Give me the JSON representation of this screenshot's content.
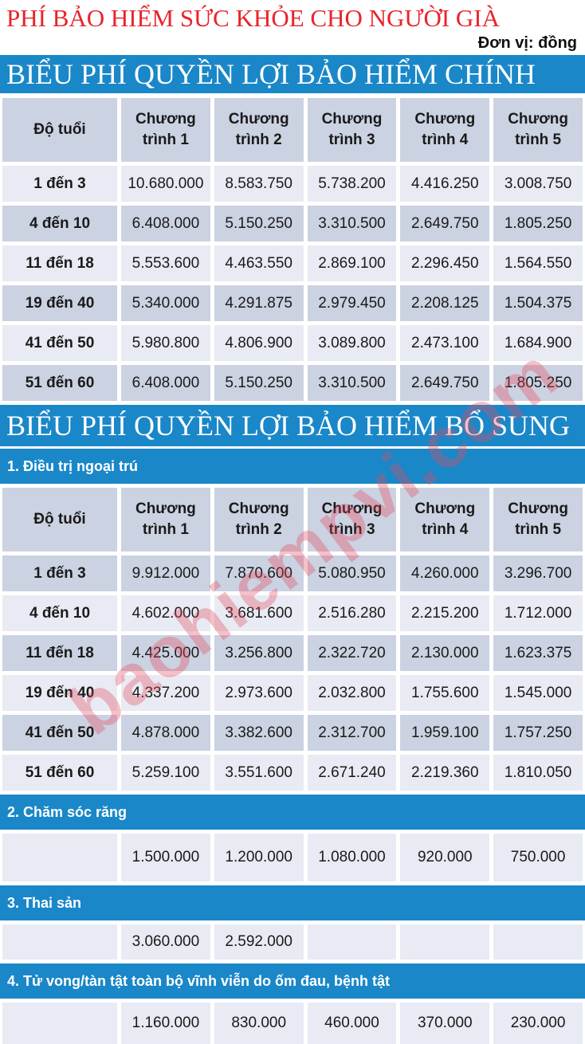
{
  "page": {
    "title": "PHÍ BẢO HIỂM SỨC KHỎE CHO NGƯỜI GIÀ",
    "unit_label": "Đơn vị: đồng",
    "watermark": "baohiempvi.com",
    "colors": {
      "banner_blue": "#1a87c8",
      "title_red": "#e8242b",
      "row_light": "#e8ebf3",
      "row_dark": "#cbd2e1",
      "watermark_pink": "rgba(228,75,95,0.35)"
    }
  },
  "main_table": {
    "banner": "BIỂU PHÍ QUYỀN LỢI BẢO HIỂM CHÍNH",
    "columns": [
      "Độ tuổi",
      "Chương trình 1",
      "Chương trình 2",
      "Chương trình 3",
      "Chương trình 4",
      "Chương trình 5"
    ],
    "rows": [
      {
        "age": "1 đến 3",
        "values": [
          "10.680.000",
          "8.583.750",
          "5.738.200",
          "4.416.250",
          "3.008.750"
        ]
      },
      {
        "age": "4 đến 10",
        "values": [
          "6.408.000",
          "5.150.250",
          "3.310.500",
          "2.649.750",
          "1.805.250"
        ]
      },
      {
        "age": "11 đến 18",
        "values": [
          "5.553.600",
          "4.463.550",
          "2.869.100",
          "2.296.450",
          "1.564.550"
        ]
      },
      {
        "age": "19 đến 40",
        "values": [
          "5.340.000",
          "4.291.875",
          "2.979.450",
          "2.208.125",
          "1.504.375"
        ]
      },
      {
        "age": "41 đến 50",
        "values": [
          "5.980.800",
          "4.806.900",
          "3.089.800",
          "2.473.100",
          "1.684.900"
        ]
      },
      {
        "age": "51 đến 60",
        "values": [
          "6.408.000",
          "5.150.250",
          "3.310.500",
          "2.649.750",
          "1.805.250"
        ]
      }
    ]
  },
  "bonus_table": {
    "banner": "BIỂU PHÍ QUYỀN LỢI BẢO HIỂM BỔ SUNG",
    "sections": [
      {
        "label": "1. Điều trị ngoại trú",
        "columns": [
          "Độ tuổi",
          "Chương trình 1",
          "Chương trình 2",
          "Chương trình 3",
          "Chương trình 4",
          "Chương trình 5"
        ],
        "rows": [
          {
            "age": "1 đến 3",
            "values": [
              "9.912.000",
              "7.870.600",
              "5.080.950",
              "4.260.000",
              "3.296.700"
            ]
          },
          {
            "age": "4 đến 10",
            "values": [
              "4.602.000",
              "3.681.600",
              "2.516.280",
              "2.215.200",
              "1.712.000"
            ]
          },
          {
            "age": "11 đến 18",
            "values": [
              "4.425.000",
              "3.256.800",
              "2.322.720",
              "2.130.000",
              "1.623.375"
            ]
          },
          {
            "age": "19 đến 40",
            "values": [
              "4.337.200",
              "2.973.600",
              "2.032.800",
              "1.755.600",
              "1.545.000"
            ]
          },
          {
            "age": "41 đến 50",
            "values": [
              "4.878.000",
              "3.382.600",
              "2.312.700",
              "1.959.100",
              "1.757.250"
            ]
          },
          {
            "age": "51 đến 60",
            "values": [
              "5.259.100",
              "3.551.600",
              "2.671.240",
              "2.219.360",
              "1.810.050"
            ]
          }
        ]
      },
      {
        "label": "2. Chăm sóc răng",
        "rows": [
          {
            "age": "",
            "values": [
              "1.500.000",
              "1.200.000",
              "1.080.000",
              "920.000",
              "750.000"
            ]
          }
        ]
      },
      {
        "label": "3. Thai sản",
        "rows": [
          {
            "age": "",
            "values": [
              "3.060.000",
              "2.592.000",
              "",
              "",
              ""
            ]
          }
        ]
      },
      {
        "label": "4. Tử vong/tàn tật toàn bộ vĩnh viễn do ốm đau, bệnh tật",
        "rows": [
          {
            "age": "",
            "values": [
              "1.160.000",
              "830.000",
              "460.000",
              "370.000",
              "230.000"
            ]
          }
        ]
      }
    ]
  }
}
